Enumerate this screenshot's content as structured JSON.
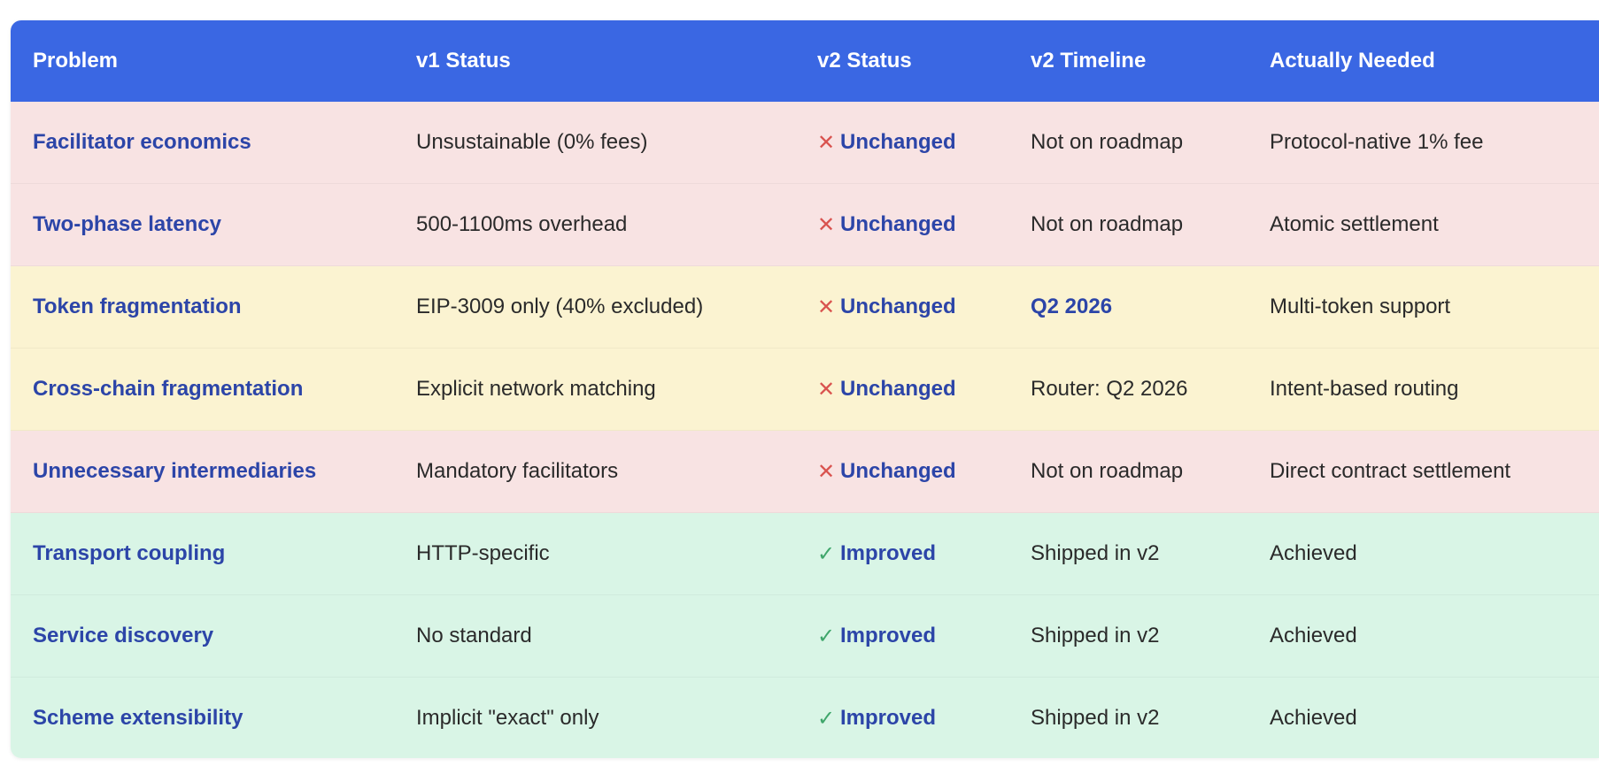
{
  "colors": {
    "header_bg": "#3a67e3",
    "red_row": "#f8e3e3",
    "yellow_row": "#fbf3d1",
    "green_row": "#d9f5e6",
    "accent_text": "#2c45a8",
    "x_mark": "#d9534f",
    "check_mark": "#3fa66b"
  },
  "table": {
    "headers": [
      "Problem",
      "v1 Status",
      "v2 Status",
      "v2 Timeline",
      "Actually Needed"
    ],
    "rows": [
      {
        "problem": "Facilitator economics",
        "v1_status": "Unsustainable (0% fees)",
        "v2_status_icon": "x-mark-icon",
        "v2_status_mark": "✕",
        "v2_status": "Unchanged",
        "v2_timeline": "Not on roadmap",
        "actually_needed": "Protocol-native 1% fee",
        "tint": "red"
      },
      {
        "problem": "Two-phase latency",
        "v1_status": "500-1100ms overhead",
        "v2_status_icon": "x-mark-icon",
        "v2_status_mark": "✕",
        "v2_status": "Unchanged",
        "v2_timeline": "Not on roadmap",
        "actually_needed": "Atomic settlement",
        "tint": "red"
      },
      {
        "problem": "Token fragmentation",
        "v1_status": "EIP-3009 only (40% excluded)",
        "v2_status_icon": "x-mark-icon",
        "v2_status_mark": "✕",
        "v2_status": "Unchanged",
        "v2_timeline": "Q2 2026",
        "actually_needed": "Multi-token support",
        "tint": "yellow"
      },
      {
        "problem": "Cross-chain fragmentation",
        "v1_status": "Explicit network matching",
        "v2_status_icon": "x-mark-icon",
        "v2_status_mark": "✕",
        "v2_status": "Unchanged",
        "v2_timeline": "Router: Q2 2026",
        "actually_needed": "Intent-based routing",
        "tint": "yellow"
      },
      {
        "problem": "Unnecessary intermediaries",
        "v1_status": "Mandatory facilitators",
        "v2_status_icon": "x-mark-icon",
        "v2_status_mark": "✕",
        "v2_status": "Unchanged",
        "v2_timeline": "Not on roadmap",
        "actually_needed": "Direct contract settlement",
        "tint": "red"
      },
      {
        "problem": "Transport coupling",
        "v1_status": "HTTP-specific",
        "v2_status_icon": "check-mark-icon",
        "v2_status_mark": "✓",
        "v2_status": "Improved",
        "v2_timeline": "Shipped in v2",
        "actually_needed": "Achieved",
        "tint": "green"
      },
      {
        "problem": "Service discovery",
        "v1_status": "No standard",
        "v2_status_icon": "check-mark-icon",
        "v2_status_mark": "✓",
        "v2_status": "Improved",
        "v2_timeline": "Shipped in v2",
        "actually_needed": "Achieved",
        "tint": "green"
      },
      {
        "problem": "Scheme extensibility",
        "v1_status": "Implicit \"exact\" only",
        "v2_status_icon": "check-mark-icon",
        "v2_status_mark": "✓",
        "v2_status": "Improved",
        "v2_timeline": "Shipped in v2",
        "actually_needed": "Achieved",
        "tint": "green"
      }
    ]
  }
}
